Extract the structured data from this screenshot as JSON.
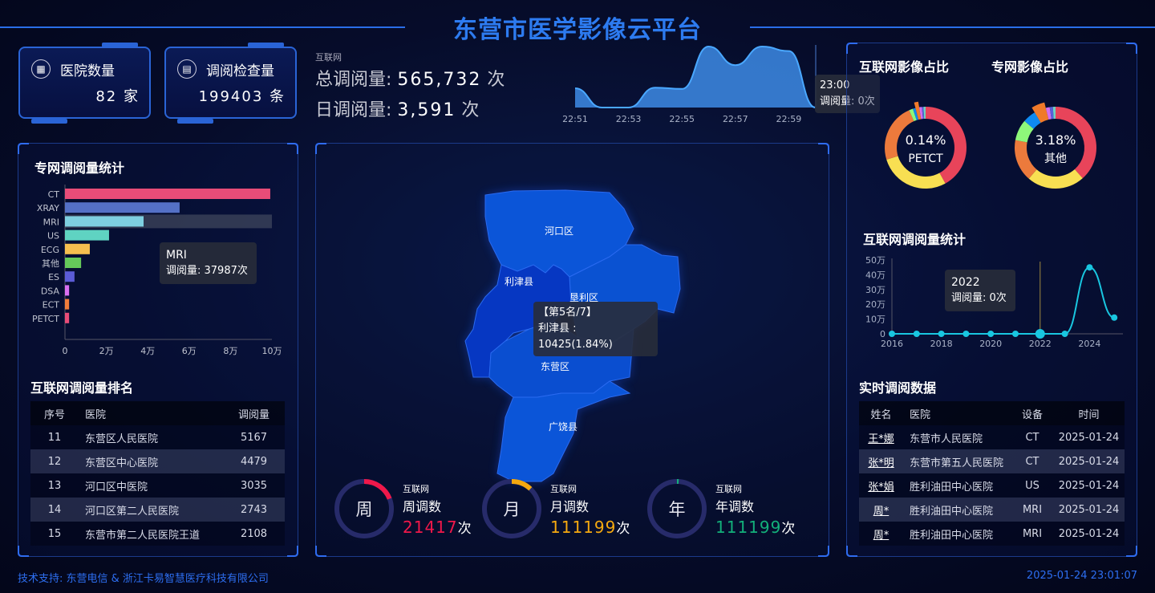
{
  "header": {
    "title": "东营市医学影像云平台"
  },
  "cards": [
    {
      "icon": "hospital-icon",
      "label": "医院数量",
      "value": "82 家"
    },
    {
      "icon": "document-icon",
      "label": "调阅检查量",
      "value": "199403 条"
    }
  ],
  "summary": {
    "tag": "互联网",
    "total_label": "总调阅量:",
    "total_value": "565,732",
    "total_unit": "次",
    "daily_label": "日调阅量:",
    "daily_value": "3,591",
    "daily_unit": "次"
  },
  "realtime_chart": {
    "type": "area",
    "x": [
      "22:51",
      "22:52",
      "22:53",
      "22:54",
      "22:55",
      "22:56",
      "22:57",
      "22:58",
      "22:59",
      "23:00"
    ],
    "values": [
      3,
      0,
      0,
      3.1,
      2.9,
      9.5,
      6.6,
      9.5,
      8.8,
      0
    ],
    "xticks": [
      "22:51",
      "22:53",
      "22:55",
      "22:57",
      "22:59"
    ],
    "color": "#3d8be6",
    "tooltip": {
      "title": "23:00",
      "line": "调阅量: 0次"
    }
  },
  "private_bar": {
    "title": "专网调阅量统计",
    "chart_data": {
      "type": "bar",
      "orientation": "horizontal",
      "categories": [
        "CT",
        "XRAY",
        "MRI",
        "US",
        "ECG",
        "其他",
        "ES",
        "DSA",
        "ECT",
        "PETCT"
      ],
      "values": [
        99200,
        55400,
        37987,
        21300,
        12000,
        7800,
        4600,
        2000,
        2000,
        2000
      ],
      "colors": [
        "#e84c78",
        "#5470c6",
        "#7ecfe0",
        "#5fd3c2",
        "#f5bf4f",
        "#65c95a",
        "#5b5bd6",
        "#d86ff0",
        "#ef7c3a",
        "#e84c78"
      ],
      "xlim": [
        0,
        100000
      ],
      "xticks": [
        "0",
        "2万",
        "4万",
        "6万",
        "8万",
        "10万"
      ],
      "highlight": "MRI"
    },
    "tooltip": {
      "title": "MRI",
      "line": "调阅量: 37987次"
    }
  },
  "ranking": {
    "title": "互联网调阅量排名",
    "columns": [
      "序号",
      "医院",
      "调阅量"
    ],
    "rows": [
      [
        "11",
        "东营区人民医院",
        "5167"
      ],
      [
        "12",
        "东营区中心医院",
        "4479"
      ],
      [
        "13",
        "河口区中医院",
        "3035"
      ],
      [
        "14",
        "河口区第二人民医院",
        "2743"
      ],
      [
        "15",
        "东营市第二人民医院王道",
        "2108"
      ]
    ]
  },
  "map": {
    "regions": [
      {
        "name": "河口区",
        "color": "#0b55d8"
      },
      {
        "name": "垦利区",
        "color": "#0a52d2"
      },
      {
        "name": "利津县",
        "color": "#0637c2"
      },
      {
        "name": "东营区",
        "color": "#0a4ed0"
      },
      {
        "name": "广饶县",
        "color": "#0b55d8"
      }
    ],
    "tooltip": {
      "rank": "【第5名/7】",
      "line": "利津县 : 10425(1.84%)"
    }
  },
  "stats": [
    {
      "char": "周",
      "tag": "互联网",
      "label": "周调数",
      "value": "21417",
      "unit": "次",
      "color": "#f0184a",
      "progress": 0.19
    },
    {
      "char": "月",
      "tag": "互联网",
      "label": "月调数",
      "value": "111199",
      "unit": "次",
      "color": "#f5a910",
      "progress": 0.12
    },
    {
      "char": "年",
      "tag": "互联网",
      "label": "年调数",
      "value": "111199",
      "unit": "次",
      "color": "#13b07a",
      "progress": 0.01
    }
  ],
  "donuts": [
    {
      "title": "互联网影像占比",
      "pct": "0.14%",
      "name": "PETCT",
      "chart_data": {
        "type": "pie",
        "values": [
          40,
          27,
          22,
          1.5,
          1,
          1.4,
          1,
          0.6,
          0.8
        ],
        "colors": [
          "#e8445a",
          "#f8df52",
          "#ec7a3c",
          "#8ef77a",
          "#0f8af0",
          "#f07a2a",
          "#d46ef2",
          "#5a5fd8",
          "#6dd2c4"
        ],
        "highlight_index": 5
      }
    },
    {
      "title": "专网影像占比",
      "pct": "3.18%",
      "name": "其他",
      "chart_data": {
        "type": "pie",
        "values": [
          37,
          22,
          16,
          8,
          5,
          4.5,
          1.5,
          1.2,
          1
        ],
        "colors": [
          "#e8445a",
          "#f8df52",
          "#ec7a3c",
          "#8ef77a",
          "#0f8af0",
          "#f07a2a",
          "#d46ef2",
          "#5a5fd8",
          "#6dd2c4"
        ],
        "highlight_index": 5
      }
    }
  ],
  "net_line": {
    "title": "互联网调阅量统计",
    "chart_data": {
      "type": "line",
      "x": [
        2016,
        2017,
        2018,
        2019,
        2020,
        2021,
        2022,
        2023,
        2024,
        2025
      ],
      "values": [
        0,
        0,
        0,
        0,
        0,
        0,
        0,
        0,
        450000,
        110000
      ],
      "ylim": [
        0,
        500000
      ],
      "yticks": [
        "0",
        "10万",
        "20万",
        "30万",
        "40万",
        "50万"
      ],
      "xticks": [
        "2016",
        "2018",
        "2020",
        "2022",
        "2024"
      ],
      "color": "#19c6e0"
    },
    "tooltip": {
      "title": "2022",
      "line": "调阅量: 0次"
    }
  },
  "realtime_table": {
    "title": "实时调阅数据",
    "columns": [
      "姓名",
      "医院",
      "设备",
      "时间"
    ],
    "rows": [
      [
        "王*娜",
        "东营市人民医院",
        "CT",
        "2025-01-24"
      ],
      [
        "张*明",
        "东营市第五人民医院",
        "CT",
        "2025-01-24"
      ],
      [
        "张*娟",
        "胜利油田中心医院",
        "US",
        "2025-01-24"
      ],
      [
        "周*",
        "胜利油田中心医院",
        "MRI",
        "2025-01-24"
      ],
      [
        "周*",
        "胜利油田中心医院",
        "MRI",
        "2025-01-24"
      ]
    ]
  },
  "footer": {
    "support": "技术支持: 东营电信 & 浙江卡易智慧医疗科技有限公司",
    "datetime": "2025-01-24 23:01:07"
  }
}
